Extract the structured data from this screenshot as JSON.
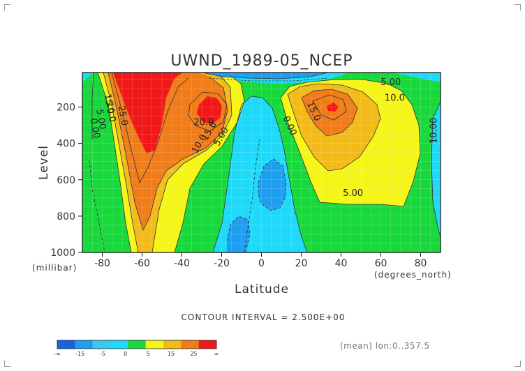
{
  "chart_data": {
    "type": "contour",
    "title": "UWND_1989-05_NCEP",
    "xlabel": "Latitude",
    "ylabel": "Level",
    "x_unit": "(degrees_north)",
    "y_unit": "(millibar)",
    "xlim": [
      -90,
      90
    ],
    "ylim": [
      1000,
      10
    ],
    "x_ticks": [
      -80,
      -60,
      -40,
      -20,
      0,
      20,
      40,
      60,
      80
    ],
    "y_ticks": [
      200,
      400,
      600,
      800,
      1000
    ],
    "contour_interval_text": "CONTOUR INTERVAL = 2.500E+00",
    "mean_note": "(mean) lon:0..357.5",
    "contour_labels": [
      {
        "text": "5.00",
        "lat": -82,
        "level": 270
      },
      {
        "text": "0.00",
        "lat": -85,
        "level": 320
      },
      {
        "text": "10.0",
        "lat": -77,
        "level": 230
      },
      {
        "text": "15.0",
        "lat": -78,
        "level": 185
      },
      {
        "text": "25.0",
        "lat": -71,
        "level": 250
      },
      {
        "text": "20.0",
        "lat": -29,
        "level": 300
      },
      {
        "text": "15.0",
        "lat": -25,
        "level": 340
      },
      {
        "text": "10.0",
        "lat": -30,
        "level": 410
      },
      {
        "text": "5.00",
        "lat": -19,
        "level": 370
      },
      {
        "text": "0.00",
        "lat": 13,
        "level": 310
      },
      {
        "text": "15.0",
        "lat": 25,
        "level": 230
      },
      {
        "text": "5.00",
        "lat": 65,
        "level": 80
      },
      {
        "text": "10.0",
        "lat": 67,
        "level": 165
      },
      {
        "text": "10.00",
        "lat": 88,
        "level": 330
      },
      {
        "text": "5.00",
        "lat": 46,
        "level": 690
      }
    ],
    "colorbar": {
      "labels": [
        "-∞",
        "-15",
        "-5",
        "0",
        "5",
        "15",
        "25",
        "∞"
      ],
      "colors": [
        "#1565e0",
        "#1f9ef0",
        "#3cc8f5",
        "#20d8f8",
        "#18d83c",
        "#f5f518",
        "#f3bb1a",
        "#f07c1a",
        "#f01818"
      ]
    },
    "colors": {
      "frame": "#111111",
      "contour": "#333333",
      "grid": "#ffffff"
    }
  }
}
